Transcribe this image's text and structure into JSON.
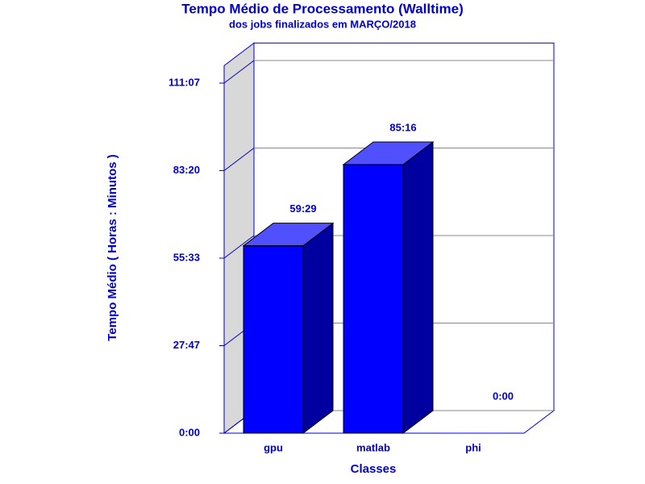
{
  "chart_data": {
    "type": "bar3d",
    "title": "Tempo Médio de Processamento (Walltime)",
    "subtitle": "dos jobs finalizados em MARÇO/2018",
    "x_label": "Classes",
    "y_label": "Tempo Médio ( Horas : Minutos )",
    "categories": [
      "gpu",
      "matlab",
      "phi"
    ],
    "values": [
      3569,
      5116,
      0
    ],
    "value_labels": [
      "59:29",
      "85:16",
      "0:00"
    ],
    "color": "#0000ff",
    "ylim": [
      0,
      7000
    ],
    "yticks": [
      {
        "value": 0,
        "label": "0:00"
      },
      {
        "value": 1667,
        "label": "27:47"
      },
      {
        "value": 3333,
        "label": "55:33"
      },
      {
        "value": 5000,
        "label": "83:20"
      },
      {
        "value": 6667,
        "label": "111:07"
      }
    ],
    "grid": true
  }
}
